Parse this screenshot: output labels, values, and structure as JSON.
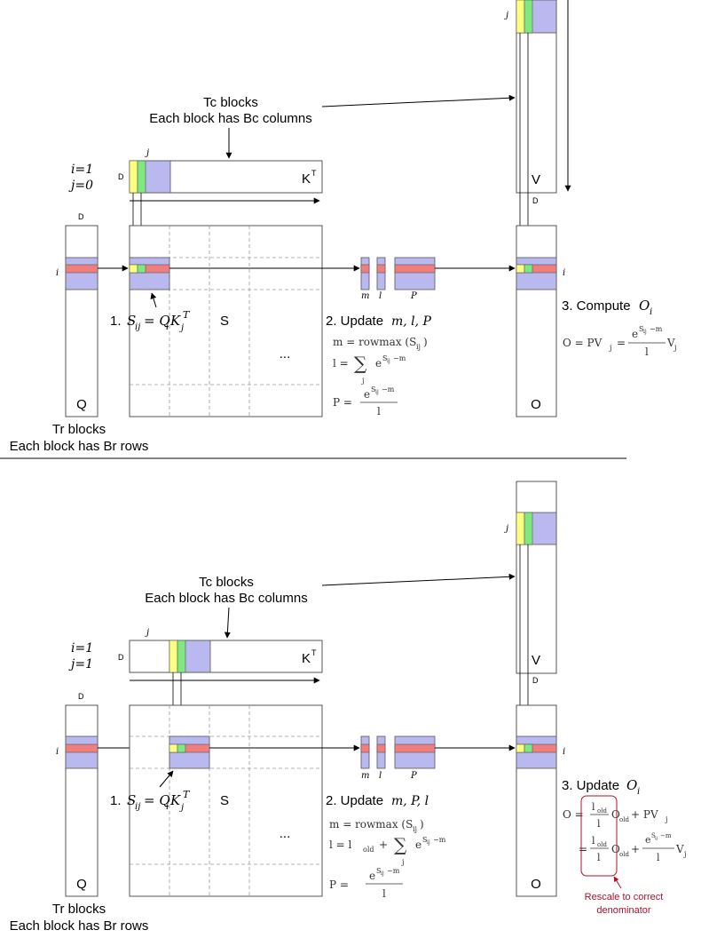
{
  "colors": {
    "blue": "#b9b9f0",
    "red": "#ef7f7f",
    "yellow": "#ffff80",
    "green": "#80e880",
    "annotation": "#b0102a",
    "grid": "#9a9a9a"
  },
  "top": {
    "tc_line1": "Tc blocks",
    "tc_line2": "Each block has Bc columns",
    "iter_i": "i=1",
    "iter_j": "j=0",
    "d_k": "D",
    "j_k": "j",
    "k_label": "K",
    "k_sup": "T",
    "d_q": "D",
    "i_q": "i",
    "q_label": "Q",
    "s_label": "S",
    "dots": "...",
    "tr_line1": "Tr blocks",
    "tr_line2": "Each block has Br rows",
    "step1_num": "1.",
    "step1_eq": "S",
    "step1_sub": "ij",
    "step1_rest": " = Q",
    "step1_qsub": "i",
    "step1_k": "K",
    "step1_ksub": "j",
    "step1_ksup": "T",
    "m": "m",
    "l": "l",
    "p": "P",
    "step2": "2. Update",
    "step2_vars": "m, l, P",
    "eq_m": "m = rowmax (S",
    "eq_m_sub": "ij",
    "eq_m_end": ")",
    "eq_l": "l =",
    "eq_sum": "∑",
    "eq_sum_sub": "j",
    "eq_e": "e",
    "eq_e_sup": "S",
    "eq_e_sup_sub": "ij",
    "eq_e_sup_rest": "−m",
    "eq_p": "P =",
    "eq_den": "l",
    "j_v": "j",
    "v_label": "V",
    "d_v": "D",
    "i_o": "i",
    "o_label": "O",
    "step3": "3. Compute",
    "step3_var": "O",
    "step3_sub": "i",
    "eq_o": "O = PV",
    "eq_o_sub": "j",
    "eq_o_eq": "=",
    "eq_o_num": "e",
    "eq_o_den": "l",
    "eq_o_v": "V",
    "eq_o_vsub": "j"
  },
  "bottom": {
    "tc_line1": "Tc blocks",
    "tc_line2": "Each block has Bc columns",
    "iter_i": "i=1",
    "iter_j": "j=1",
    "d_k": "D",
    "j_k": "j",
    "k_label": "K",
    "k_sup": "T",
    "d_q": "D",
    "i_q": "i",
    "q_label": "Q",
    "s_label": "S",
    "dots": "...",
    "tr_line1": "Tr blocks",
    "tr_line2": "Each block has Br rows",
    "step1_num": "1.",
    "step1_eq": "S",
    "step1_sub": "ij",
    "step1_rest": " = Q",
    "step1_qsub": "i",
    "step1_k": "K",
    "step1_ksub": "j",
    "step1_ksup": "T",
    "m": "m",
    "l": "l",
    "p": "P",
    "step2": "2. Update",
    "step2_vars": "m, P, l",
    "eq_m": "m = rowmax (S",
    "eq_m_sub": "ij",
    "eq_m_end": ")",
    "eq_l": "l = l",
    "eq_l_sub": "old",
    "eq_l_plus": "+",
    "eq_sum": "∑",
    "eq_sum_sub": "j",
    "eq_e": "e",
    "eq_e_sup": "S",
    "eq_e_sup_sub": "ij",
    "eq_e_sup_rest": "−m",
    "eq_p": "P =",
    "eq_den": "l",
    "j_v": "j",
    "v_label": "V",
    "d_v": "D",
    "i_o": "i",
    "o_label": "O",
    "step3": "3. Update",
    "step3_var": "O",
    "step3_sub": "i",
    "eq1_o": "O =",
    "eq_lold": "l",
    "eq_lold_sub": "old",
    "eq_l_den": "l",
    "eq_oold": "O",
    "eq_oold_sub": "old",
    "eq1_plus": "+ PV",
    "eq1_vsub": "j",
    "eq2_eq": "=",
    "eq2_plus": "+",
    "eq2_num": "e",
    "eq2_den": "l",
    "eq2_v": "V",
    "eq2_vsub": "j",
    "note_line1": "Rescale to correct",
    "note_line2": "denominator"
  }
}
